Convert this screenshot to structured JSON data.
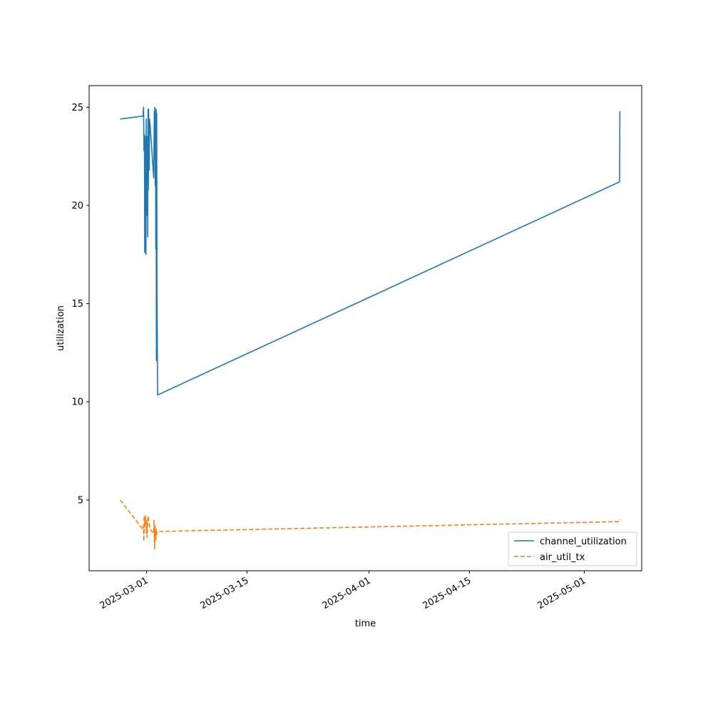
{
  "chart_data": {
    "type": "line",
    "title": "",
    "xlabel": "time",
    "ylabel": "utilization",
    "xlim": [
      "2025-02-21",
      "2025-05-09"
    ],
    "ylim": [
      1.4,
      26.1
    ],
    "x_ticks": [
      "2025-03-01",
      "2025-03-15",
      "2025-04-01",
      "2025-04-15",
      "2025-05-01"
    ],
    "y_ticks": [
      5,
      10,
      15,
      20,
      25
    ],
    "grid": false,
    "legend_position": "lower right",
    "series": [
      {
        "name": "channel_utilization",
        "color": "#1f77b4",
        "dash": "solid",
        "points": [
          [
            "2025-02-25T08:00",
            24.4
          ],
          [
            "2025-02-28T12:00",
            24.55
          ],
          [
            "2025-02-28T14:00",
            25.0
          ],
          [
            "2025-02-28T15:30",
            22.8
          ],
          [
            "2025-02-28T17:00",
            23.6
          ],
          [
            "2025-02-28T18:00",
            17.6
          ],
          [
            "2025-02-28T19:00",
            23.3
          ],
          [
            "2025-02-28T20:00",
            20.2
          ],
          [
            "2025-02-28T21:00",
            23.5
          ],
          [
            "2025-02-28T22:00",
            17.5
          ],
          [
            "2025-02-28T23:00",
            24.4
          ],
          [
            "2025-03-01T00:00",
            19.5
          ],
          [
            "2025-03-01T01:00",
            23.5
          ],
          [
            "2025-03-01T02:00",
            20.2
          ],
          [
            "2025-03-01T03:00",
            23.5
          ],
          [
            "2025-03-01T04:00",
            18.4
          ],
          [
            "2025-03-01T05:00",
            24.9
          ],
          [
            "2025-03-01T06:00",
            20.8
          ],
          [
            "2025-03-01T07:00",
            24.9
          ],
          [
            "2025-03-01T08:00",
            23.2
          ],
          [
            "2025-03-01T09:00",
            21.8
          ],
          [
            "2025-03-01T10:00",
            24.4
          ],
          [
            "2025-03-01T12:00",
            24.1
          ],
          [
            "2025-03-02T00:00",
            21.4
          ],
          [
            "2025-03-02T02:00",
            24.8
          ],
          [
            "2025-03-02T03:00",
            22.8
          ],
          [
            "2025-03-02T04:00",
            25.0
          ],
          [
            "2025-03-02T05:00",
            21.0
          ],
          [
            "2025-03-02T06:00",
            24.8
          ],
          [
            "2025-03-02T07:00",
            17.8
          ],
          [
            "2025-03-02T08:00",
            24.9
          ],
          [
            "2025-03-02T09:00",
            12.1
          ],
          [
            "2025-03-02T10:00",
            24.7
          ],
          [
            "2025-03-02T11:00",
            15.7
          ],
          [
            "2025-03-02T13:00",
            10.35
          ],
          [
            "2025-05-05T22:00",
            21.2
          ],
          [
            "2025-05-05T23:00",
            24.8
          ]
        ]
      },
      {
        "name": "air_util_tx",
        "color": "#ff7f0e",
        "dash": "dashed",
        "points": [
          [
            "2025-02-25T08:00",
            5.0
          ],
          [
            "2025-02-28T12:00",
            3.5
          ],
          [
            "2025-02-28T14:00",
            3.7
          ],
          [
            "2025-02-28T15:00",
            2.9
          ],
          [
            "2025-02-28T16:00",
            4.2
          ],
          [
            "2025-02-28T17:00",
            3.4
          ],
          [
            "2025-02-28T18:00",
            4.1
          ],
          [
            "2025-02-28T19:00",
            3.7
          ],
          [
            "2025-02-28T20:00",
            4.2
          ],
          [
            "2025-02-28T21:00",
            3.8
          ],
          [
            "2025-02-28T22:00",
            4.0
          ],
          [
            "2025-03-01T00:00",
            3.3
          ],
          [
            "2025-03-01T01:00",
            3.9
          ],
          [
            "2025-03-01T02:00",
            3.1
          ],
          [
            "2025-03-01T03:00",
            3.6
          ],
          [
            "2025-03-01T05:00",
            4.2
          ],
          [
            "2025-03-01T08:00",
            3.9
          ],
          [
            "2025-03-01T12:00",
            3.5
          ],
          [
            "2025-03-02T00:00",
            3.3
          ],
          [
            "2025-03-02T01:00",
            4.0
          ],
          [
            "2025-03-02T02:00",
            3.2
          ],
          [
            "2025-03-02T03:00",
            2.5
          ],
          [
            "2025-03-02T04:00",
            3.7
          ],
          [
            "2025-03-02T05:00",
            2.9
          ],
          [
            "2025-03-02T06:00",
            3.5
          ],
          [
            "2025-03-02T07:00",
            3.0
          ],
          [
            "2025-03-02T08:00",
            3.6
          ],
          [
            "2025-03-02T09:00",
            3.2
          ],
          [
            "2025-03-02T12:00",
            3.4
          ],
          [
            "2025-05-05T22:00",
            3.9
          ],
          [
            "2025-05-05T23:00",
            4.0
          ]
        ]
      }
    ]
  }
}
